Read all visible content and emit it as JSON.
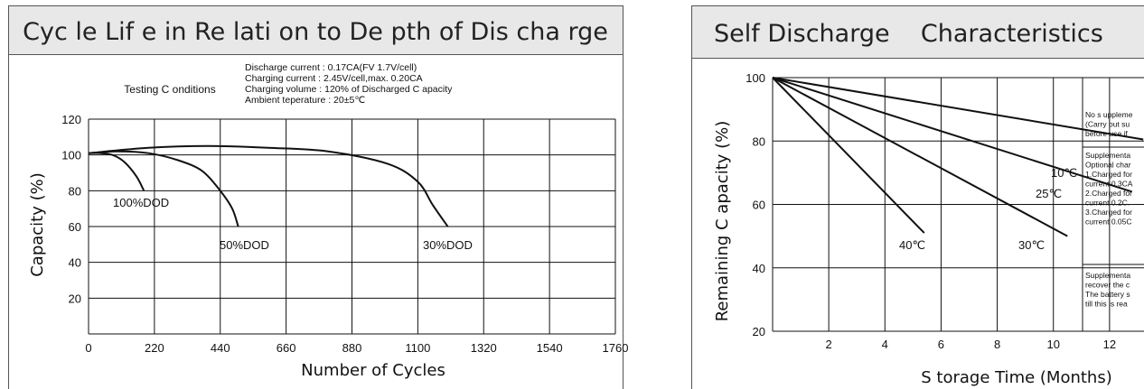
{
  "chart_data": [
    {
      "type": "line",
      "title": "Cyc le Lif e in Re lati on to De pth of Dis cha rge",
      "xlabel": "Number of Cycles",
      "ylabel": "Capacity (%)",
      "xlim": [
        0,
        1760
      ],
      "ylim": [
        0,
        120
      ],
      "xticks": [
        "0",
        "220",
        "440",
        "660",
        "880",
        "1100",
        "1320",
        "1540",
        "1760"
      ],
      "yticks": [
        "20",
        "40",
        "60",
        "80",
        "100",
        "120"
      ],
      "grid": true,
      "testing_conditions_label": "Testing C onditions",
      "conditions": [
        "Discharge current   : 0.17CA(FV 1.7V/cell)",
        "Charging current     : 2.45V/cell,max. 0.20CA",
        "Charging volume      : 120% of Discharged C apacity",
        "Ambient teperature : 20±5℃"
      ],
      "series": [
        {
          "name": "100%DOD",
          "x": [
            0,
            40,
            80,
            120,
            160,
            185
          ],
          "y": [
            101,
            101,
            100,
            96,
            88,
            80
          ]
        },
        {
          "name": "50%DOD",
          "x": [
            0,
            100,
            200,
            300,
            380,
            440,
            480,
            500
          ],
          "y": [
            101,
            102,
            101,
            97,
            91,
            80,
            70,
            60
          ]
        },
        {
          "name": "30%DOD",
          "x": [
            0,
            200,
            400,
            600,
            800,
            1000,
            1100,
            1150,
            1200
          ],
          "y": [
            101,
            104,
            105,
            104,
            102,
            95,
            85,
            72,
            60
          ]
        }
      ],
      "annotations": [
        "100%DOD",
        "50%DOD",
        "30%DOD"
      ]
    },
    {
      "type": "line",
      "title": "Self Discharge    Characteristics",
      "xlabel": "S torage Time (Months)",
      "ylabel": "Remaining C apacity (%)",
      "xlim": [
        0,
        14
      ],
      "ylim": [
        20,
        100
      ],
      "xticks": [
        "2",
        "4",
        "6",
        "8",
        "10",
        "12"
      ],
      "yticks": [
        "20",
        "40",
        "60",
        "80",
        "100"
      ],
      "grid": true,
      "series": [
        {
          "name": "10℃",
          "x": [
            0,
            13.2
          ],
          "y": [
            100,
            80.5
          ]
        },
        {
          "name": "25℃",
          "x": [
            0,
            12.8
          ],
          "y": [
            100,
            64
          ]
        },
        {
          "name": "30℃",
          "x": [
            0,
            10.5
          ],
          "y": [
            100,
            50
          ]
        },
        {
          "name": "40℃",
          "x": [
            0,
            5.4
          ],
          "y": [
            100,
            51
          ]
        }
      ],
      "annotations": [
        "10℃",
        "25℃",
        "30℃",
        "40℃"
      ],
      "notes": [
        [
          "No s uppleme",
          "(Carry out su",
          "before use if"
        ],
        [
          "Supplementa",
          "Optional char",
          "1.Charged for",
          "current 0.3CA",
          "2.Charged for",
          " current 0.2C.",
          "3.Charged for",
          "current 0.05C"
        ],
        [
          "Supplementa",
          "recover the c",
          "The battery s",
          "till this is rea"
        ]
      ]
    }
  ]
}
